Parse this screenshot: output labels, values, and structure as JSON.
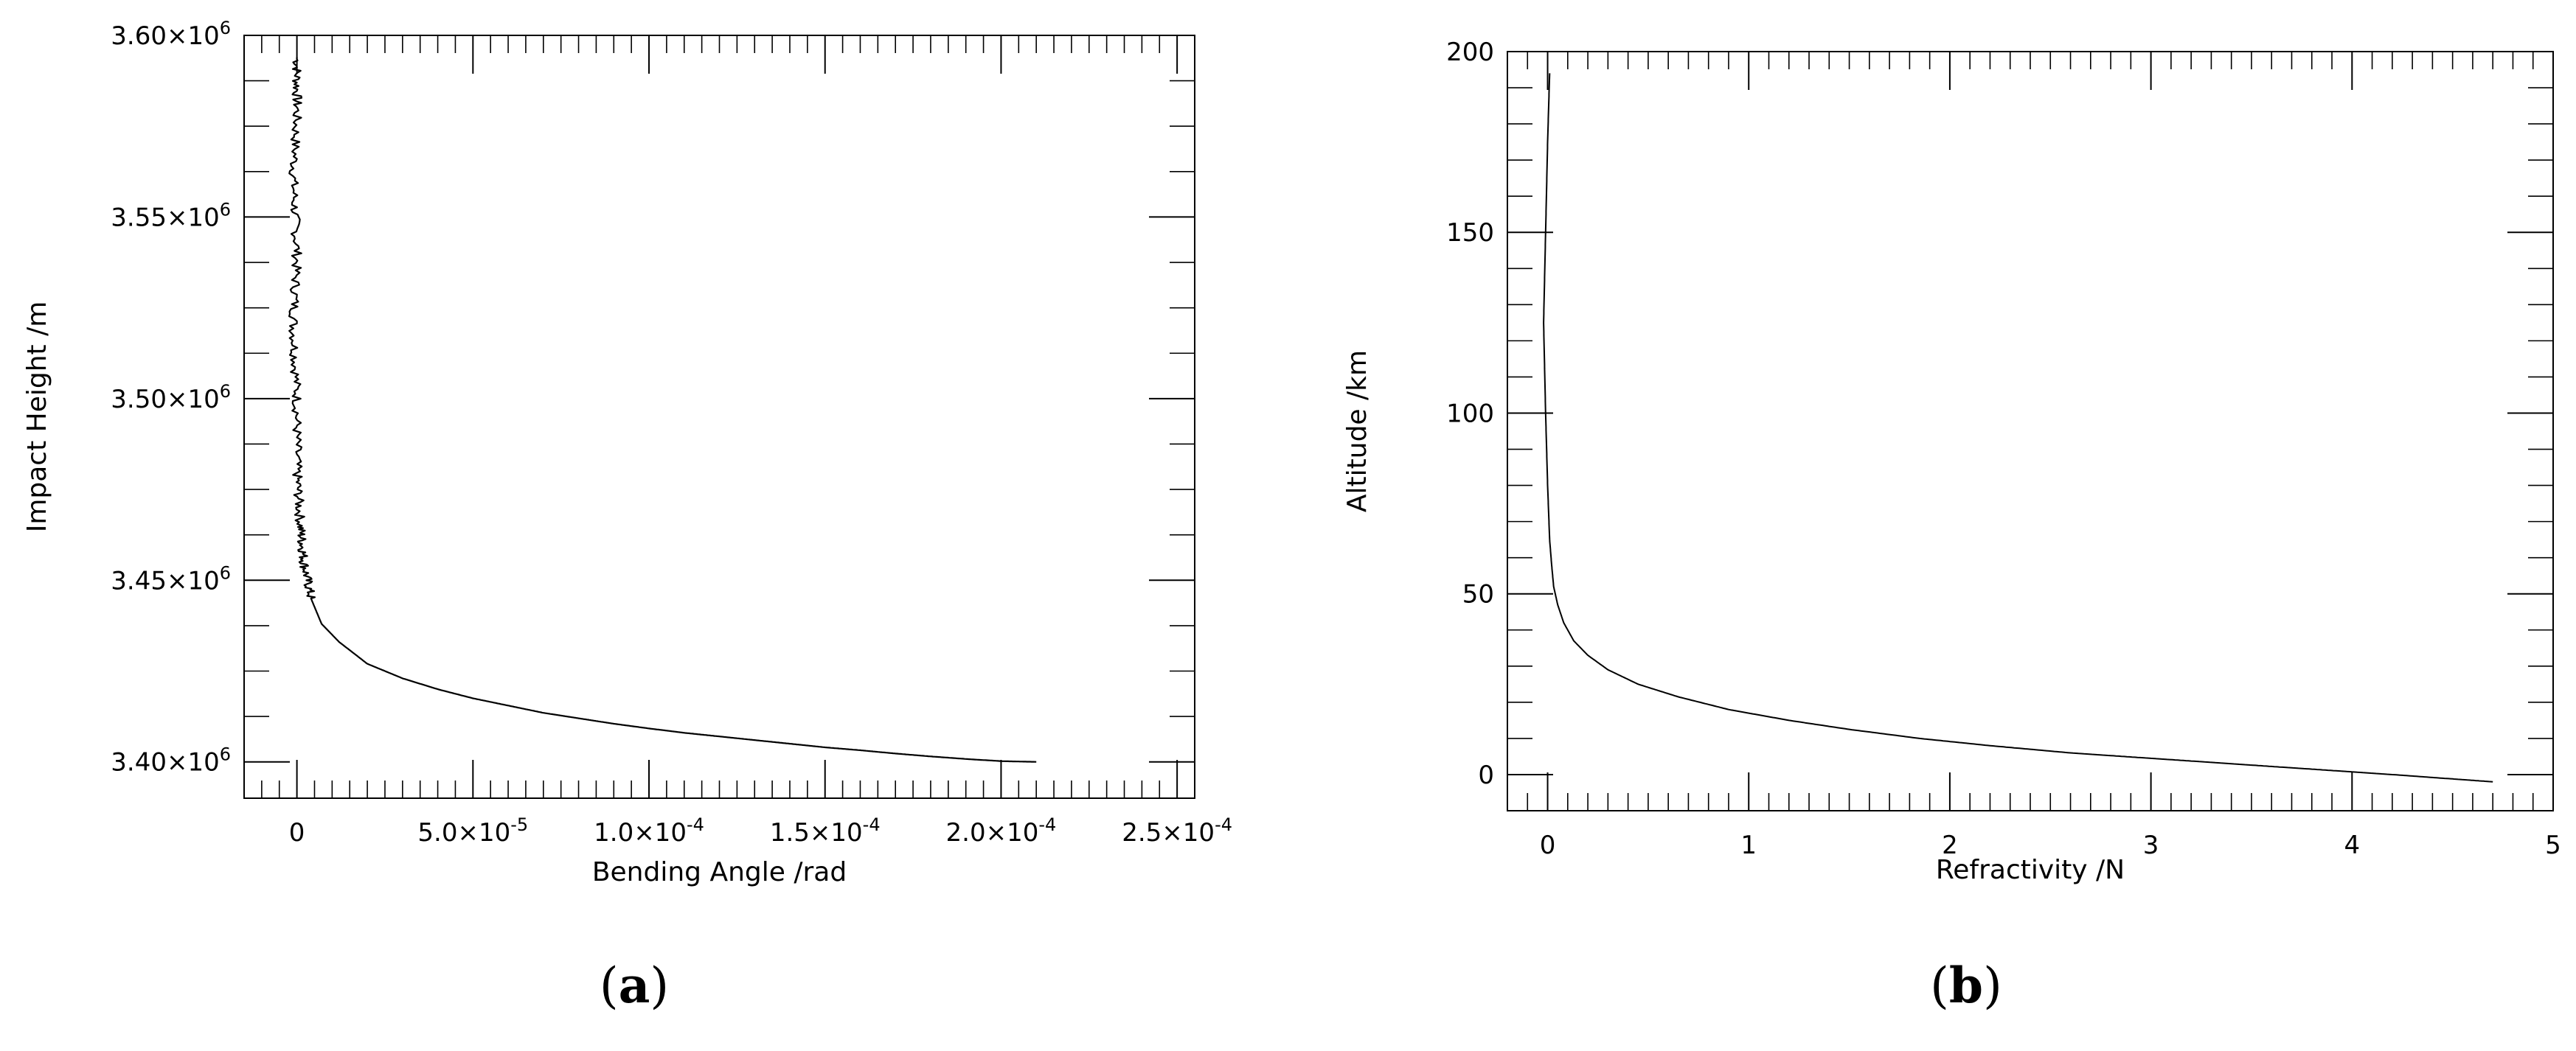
{
  "chart_data": [
    {
      "type": "line",
      "panel_label": "(a)",
      "panel_letter": "a",
      "xlabel": "Bending Angle /rad",
      "ylabel": "Impact Height /m",
      "xlim": [
        -1.5e-05,
        0.000255
      ],
      "ylim": [
        3390000,
        3600000
      ],
      "x_ticks": [
        {
          "value": 0,
          "label": "0"
        },
        {
          "value": 5e-05,
          "label": "5.0×10",
          "exp": "-5"
        },
        {
          "value": 0.0001,
          "label": "1.0×10",
          "exp": "-4"
        },
        {
          "value": 0.00015,
          "label": "1.5×10",
          "exp": "-4"
        },
        {
          "value": 0.0002,
          "label": "2.0×10",
          "exp": "-4"
        },
        {
          "value": 0.00025,
          "label": "2.5×10",
          "exp": "-4"
        }
      ],
      "y_ticks": [
        {
          "value": 3400000,
          "label": "3.40×10",
          "exp": "6"
        },
        {
          "value": 3450000,
          "label": "3.45×10",
          "exp": "6"
        },
        {
          "value": 3500000,
          "label": "3.50×10",
          "exp": "6"
        },
        {
          "value": 3550000,
          "label": "3.55×10",
          "exp": "6"
        },
        {
          "value": 3600000,
          "label": "3.60×10",
          "exp": "6"
        }
      ],
      "grid": false,
      "series": [
        {
          "points": [
            [
              0.0,
              3594000
            ],
            [
              0.0,
              3580000
            ],
            [
              -1e-06,
              3560000
            ],
            [
              0.0,
              3540000
            ],
            [
              -1e-06,
              3520000
            ],
            [
              0.0,
              3500000
            ],
            [
              0.0,
              3480000
            ],
            [
              1e-06,
              3465000
            ],
            [
              2e-06,
              3455000
            ],
            [
              4e-06,
              3445000
            ],
            [
              7e-06,
              3438000
            ],
            [
              1.2e-05,
              3433000
            ],
            [
              2e-05,
              3427000
            ],
            [
              3e-05,
              3423000
            ],
            [
              4e-05,
              3420000
            ],
            [
              5e-05,
              3417500
            ],
            [
              6e-05,
              3415500
            ],
            [
              7e-05,
              3413500
            ],
            [
              8e-05,
              3412000
            ],
            [
              9e-05,
              3410500
            ],
            [
              0.0001,
              3409200
            ],
            [
              0.00011,
              3408000
            ],
            [
              0.00012,
              3407000
            ],
            [
              0.00013,
              3406000
            ],
            [
              0.00014,
              3405000
            ],
            [
              0.00015,
              3404000
            ],
            [
              0.00016,
              3403200
            ],
            [
              0.00017,
              3402300
            ],
            [
              0.00018,
              3401500
            ],
            [
              0.00019,
              3400800
            ],
            [
              0.0002,
              3400200
            ],
            [
              0.00021,
              3400000
            ]
          ]
        }
      ]
    },
    {
      "type": "line",
      "panel_label": "(b)",
      "panel_letter": "b",
      "xlabel": "Refractivity /N",
      "ylabel": "Altitude /km",
      "xlim": [
        -0.2,
        5
      ],
      "ylim": [
        -10,
        200
      ],
      "x_ticks": [
        {
          "value": 0,
          "label": "0"
        },
        {
          "value": 1,
          "label": "1"
        },
        {
          "value": 2,
          "label": "2"
        },
        {
          "value": 3,
          "label": "3"
        },
        {
          "value": 4,
          "label": "4"
        },
        {
          "value": 5,
          "label": "5"
        }
      ],
      "y_ticks": [
        {
          "value": 0,
          "label": "0"
        },
        {
          "value": 50,
          "label": "50"
        },
        {
          "value": 100,
          "label": "100"
        },
        {
          "value": 150,
          "label": "150"
        },
        {
          "value": 200,
          "label": "200"
        }
      ],
      "grid": false,
      "series": [
        {
          "points": [
            [
              0.01,
              194
            ],
            [
              0.0,
              175
            ],
            [
              -0.01,
              150
            ],
            [
              -0.02,
              125
            ],
            [
              -0.01,
              100
            ],
            [
              0.0,
              80
            ],
            [
              0.01,
              65
            ],
            [
              0.02,
              58
            ],
            [
              0.03,
              52
            ],
            [
              0.05,
              47
            ],
            [
              0.08,
              42
            ],
            [
              0.13,
              37
            ],
            [
              0.2,
              33
            ],
            [
              0.3,
              29
            ],
            [
              0.45,
              25
            ],
            [
              0.65,
              21.5
            ],
            [
              0.9,
              18
            ],
            [
              1.2,
              15
            ],
            [
              1.5,
              12.5
            ],
            [
              1.85,
              10
            ],
            [
              2.2,
              8
            ],
            [
              2.6,
              6
            ],
            [
              3.0,
              4.5
            ],
            [
              3.4,
              3
            ],
            [
              3.8,
              1.5
            ],
            [
              4.2,
              0
            ],
            [
              4.5,
              -1.2
            ],
            [
              4.7,
              -2
            ]
          ]
        }
      ]
    }
  ]
}
